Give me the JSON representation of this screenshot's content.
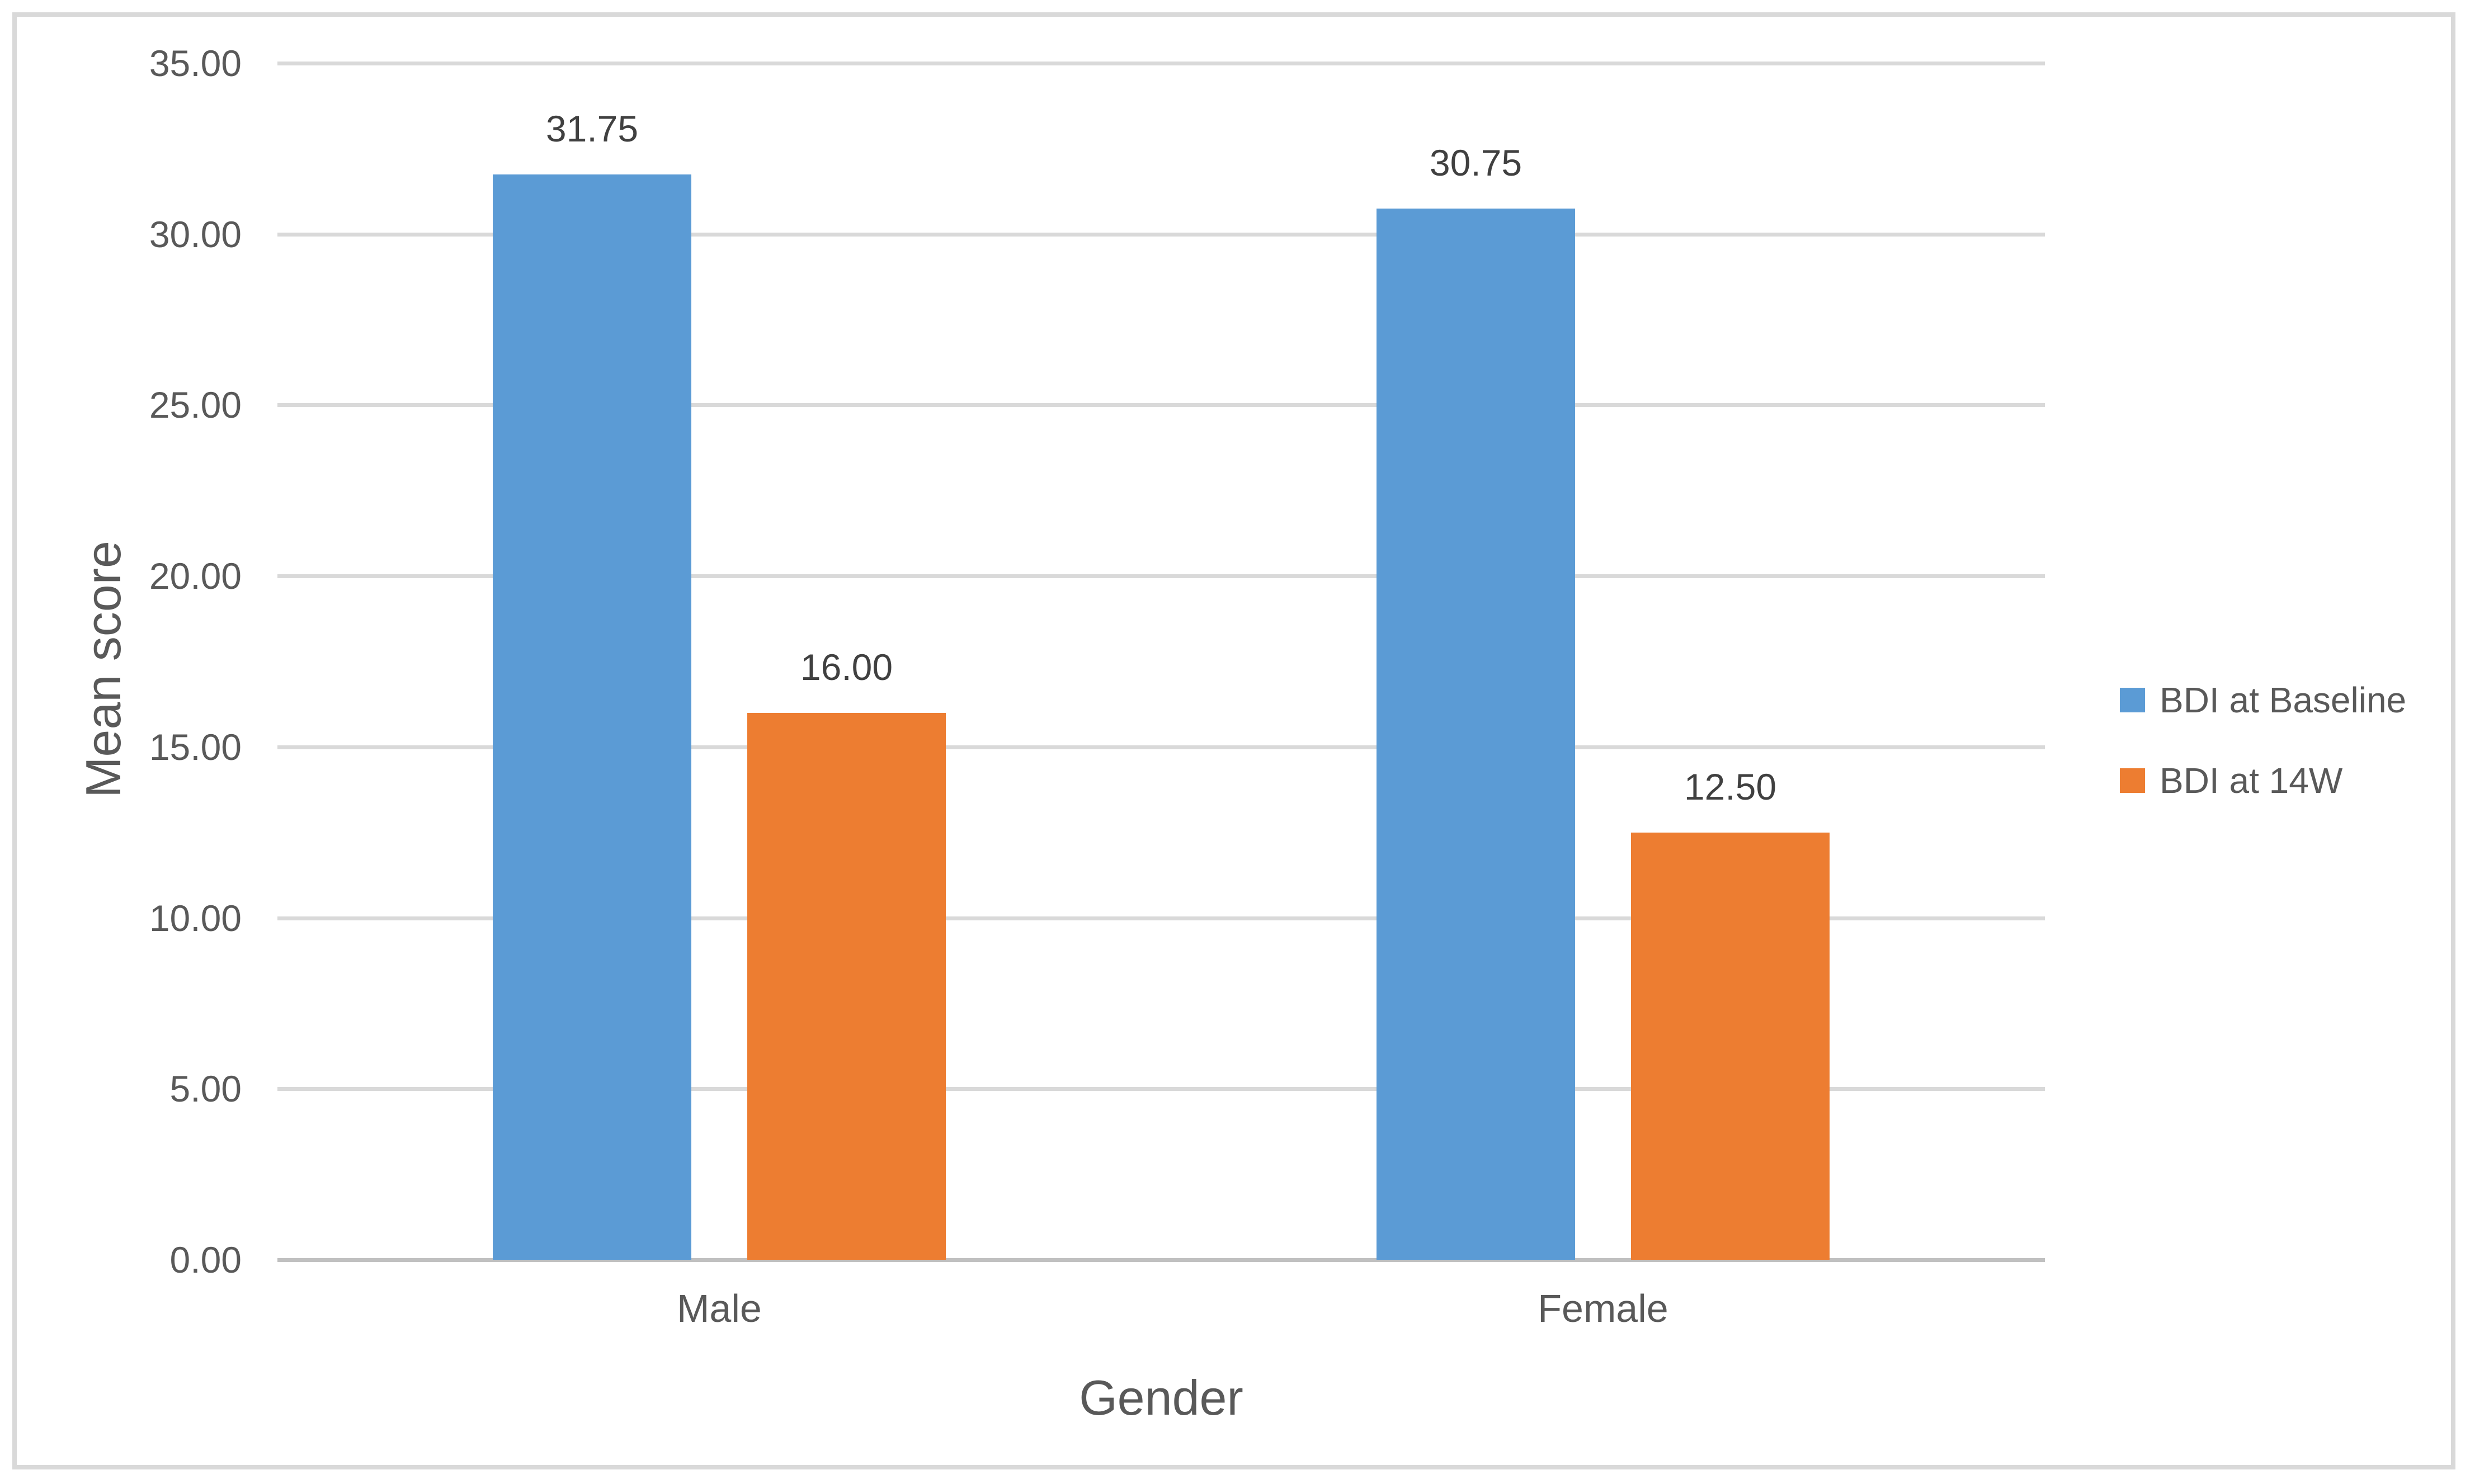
{
  "chart_data": {
    "type": "bar",
    "title": "",
    "xlabel": "Gender",
    "ylabel": "Mean score",
    "categories": [
      "Male",
      "Female"
    ],
    "series": [
      {
        "name": "BDI at Baseline",
        "color": "#5B9BD5",
        "values": [
          31.75,
          30.75
        ],
        "labels": [
          "31.75",
          "30.75"
        ]
      },
      {
        "name": "BDI at 14W",
        "color": "#ED7D31",
        "values": [
          16.0,
          12.5
        ],
        "labels": [
          "16.00",
          "12.50"
        ]
      }
    ],
    "ylim": [
      0,
      35
    ],
    "ytick_step": 5,
    "ytick_labels": [
      "0.00",
      "5.00",
      "10.00",
      "15.00",
      "20.00",
      "25.00",
      "30.00",
      "35.00"
    ],
    "grid": true,
    "legend_position": "right",
    "colors": {
      "gridline": "#D9D9D9",
      "axis_line": "#C0C0C0",
      "frame_border": "#D9D9D9",
      "tick_text": "#595959",
      "data_label_text": "#404040"
    }
  }
}
